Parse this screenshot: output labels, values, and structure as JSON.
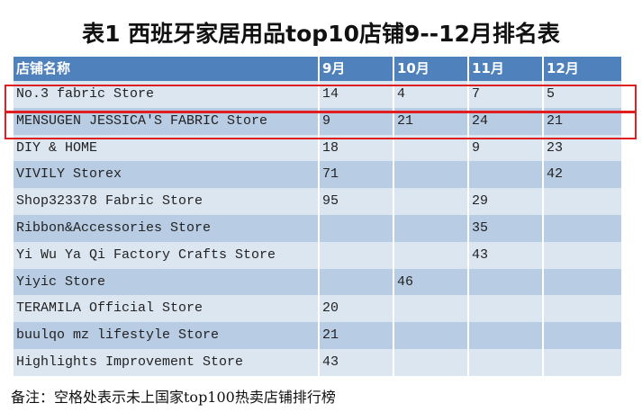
{
  "title": "表1 西班牙家居用品top10店铺9--12月排名表",
  "table": {
    "header": [
      "店铺名称",
      "9月",
      "10月",
      "11月",
      "12月"
    ],
    "rows": [
      [
        "No.3 fabric Store",
        "14",
        "4",
        "7",
        "5"
      ],
      [
        "MENSUGEN JESSICA'S FABRIC Store",
        "9",
        "21",
        "24",
        "21"
      ],
      [
        "DIY & HOME",
        "18",
        null,
        "9",
        "23"
      ],
      [
        "VIVILY Storex",
        "71",
        null,
        null,
        "42"
      ],
      [
        "Shop323378 Fabric Store",
        "95",
        null,
        "29",
        null
      ],
      [
        "Ribbon&Accessories Store",
        null,
        null,
        "35",
        null
      ],
      [
        "Yi Wu Ya Qi Factory Crafts Store",
        null,
        null,
        "43",
        null
      ],
      [
        "Yiyic Store",
        null,
        "46",
        null,
        null
      ],
      [
        "TERAMILA Official Store",
        "20",
        null,
        null,
        null
      ],
      [
        "buulqo mz lifestyle Store",
        "21",
        null,
        null,
        null
      ],
      [
        "Highlights Improvement Store",
        "43",
        null,
        null,
        null
      ]
    ]
  },
  "note": "备注：空格处表示未上国家top100热卖店铺排行榜"
}
